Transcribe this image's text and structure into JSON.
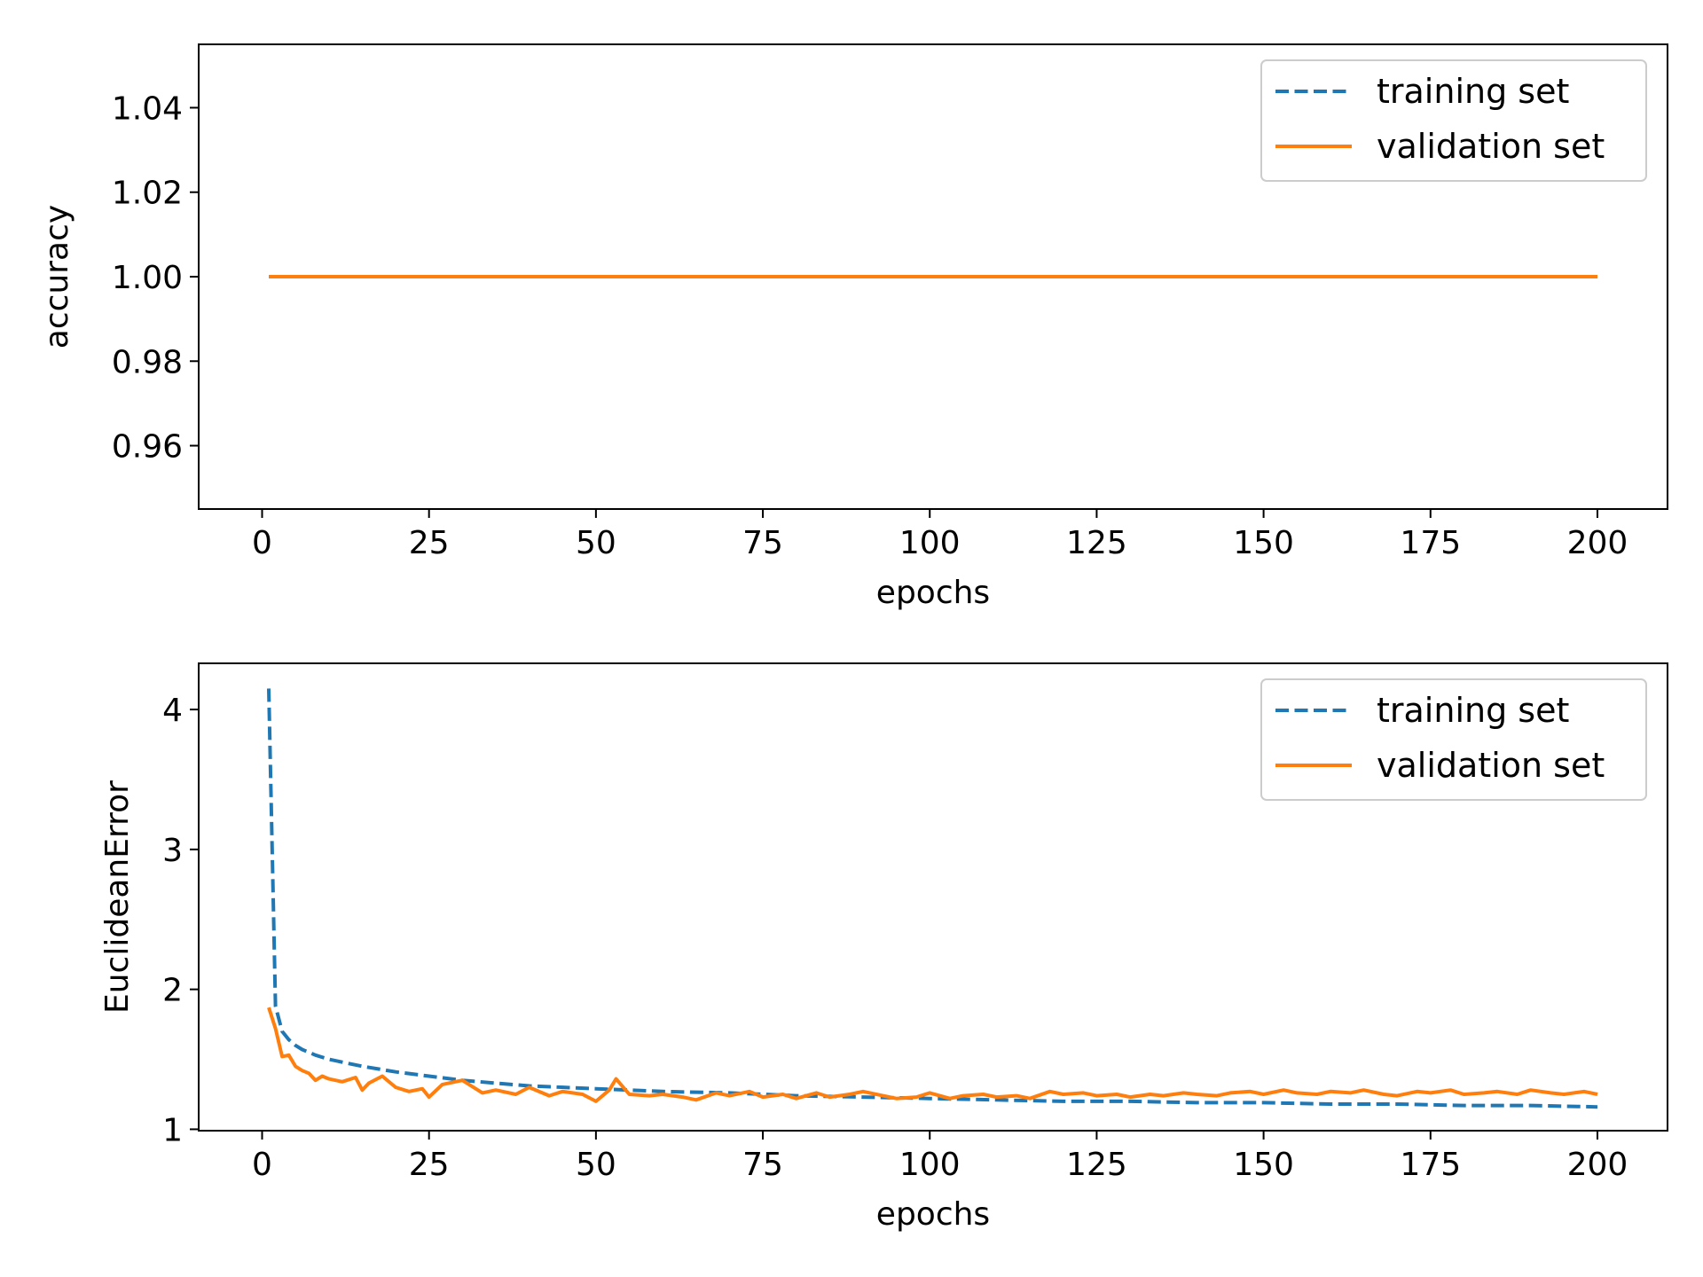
{
  "chart_data": [
    {
      "type": "line",
      "title": "",
      "xlabel": "epochs",
      "ylabel": "accuracy",
      "xlim": [
        -9.5,
        210.5
      ],
      "ylim": [
        0.945,
        1.055
      ],
      "xticks": [
        0,
        25,
        50,
        75,
        100,
        125,
        150,
        175,
        200
      ],
      "yticks": [
        0.96,
        0.98,
        1.0,
        1.02,
        1.04
      ],
      "ytick_labels": [
        "0.96",
        "0.98",
        "1.00",
        "1.02",
        "1.04"
      ],
      "grid": false,
      "legend_position": "top-right",
      "series": [
        {
          "name": "training set",
          "style": "dashed",
          "color": "#1f77b4",
          "x": [
            1,
            200
          ],
          "y": [
            1.0,
            1.0
          ]
        },
        {
          "name": "validation set",
          "style": "solid",
          "color": "#ff7f0e",
          "x": [
            1,
            200
          ],
          "y": [
            1.0,
            1.0
          ]
        }
      ]
    },
    {
      "type": "line",
      "title": "",
      "xlabel": "epochs",
      "ylabel": "EuclideanError",
      "xlim": [
        -9.5,
        210.5
      ],
      "ylim": [
        0.99,
        4.33
      ],
      "xticks": [
        0,
        25,
        50,
        75,
        100,
        125,
        150,
        175,
        200
      ],
      "yticks": [
        1,
        2,
        3,
        4
      ],
      "ytick_labels": [
        "1",
        "2",
        "3",
        "4"
      ],
      "grid": false,
      "legend_position": "top-right",
      "series": [
        {
          "name": "training set",
          "style": "dashed",
          "color": "#1f77b4",
          "x": [
            1,
            2,
            3,
            4,
            5,
            6,
            7,
            8,
            10,
            12,
            15,
            20,
            25,
            30,
            35,
            40,
            50,
            60,
            70,
            80,
            90,
            100,
            110,
            120,
            130,
            140,
            150,
            160,
            170,
            180,
            190,
            200
          ],
          "y": [
            4.15,
            1.88,
            1.7,
            1.64,
            1.6,
            1.57,
            1.55,
            1.53,
            1.5,
            1.48,
            1.45,
            1.41,
            1.38,
            1.35,
            1.33,
            1.31,
            1.29,
            1.27,
            1.26,
            1.24,
            1.23,
            1.22,
            1.21,
            1.2,
            1.2,
            1.19,
            1.19,
            1.18,
            1.18,
            1.17,
            1.17,
            1.16
          ]
        },
        {
          "name": "validation set",
          "style": "solid",
          "color": "#ff7f0e",
          "x": [
            1,
            2,
            3,
            4,
            5,
            6,
            7,
            8,
            9,
            10,
            12,
            14,
            15,
            16,
            18,
            20,
            22,
            24,
            25,
            27,
            30,
            33,
            35,
            38,
            40,
            43,
            45,
            48,
            50,
            52,
            53,
            55,
            58,
            60,
            63,
            65,
            68,
            70,
            73,
            75,
            78,
            80,
            83,
            85,
            88,
            90,
            93,
            95,
            98,
            100,
            103,
            105,
            108,
            110,
            113,
            115,
            118,
            120,
            123,
            125,
            128,
            130,
            133,
            135,
            138,
            140,
            143,
            145,
            148,
            150,
            153,
            155,
            158,
            160,
            163,
            165,
            168,
            170,
            173,
            175,
            178,
            180,
            183,
            185,
            188,
            190,
            193,
            195,
            198,
            200
          ],
          "y": [
            1.87,
            1.72,
            1.52,
            1.53,
            1.45,
            1.42,
            1.4,
            1.35,
            1.38,
            1.36,
            1.34,
            1.37,
            1.28,
            1.33,
            1.38,
            1.3,
            1.27,
            1.29,
            1.23,
            1.32,
            1.35,
            1.26,
            1.28,
            1.25,
            1.3,
            1.24,
            1.27,
            1.25,
            1.2,
            1.28,
            1.36,
            1.25,
            1.24,
            1.25,
            1.23,
            1.21,
            1.26,
            1.24,
            1.27,
            1.23,
            1.25,
            1.22,
            1.26,
            1.23,
            1.25,
            1.27,
            1.24,
            1.22,
            1.23,
            1.26,
            1.22,
            1.24,
            1.25,
            1.23,
            1.24,
            1.22,
            1.27,
            1.25,
            1.26,
            1.24,
            1.25,
            1.23,
            1.25,
            1.24,
            1.26,
            1.25,
            1.24,
            1.26,
            1.27,
            1.25,
            1.28,
            1.26,
            1.25,
            1.27,
            1.26,
            1.28,
            1.25,
            1.24,
            1.27,
            1.26,
            1.28,
            1.25,
            1.26,
            1.27,
            1.25,
            1.28,
            1.26,
            1.25,
            1.27,
            1.25
          ]
        }
      ]
    }
  ]
}
